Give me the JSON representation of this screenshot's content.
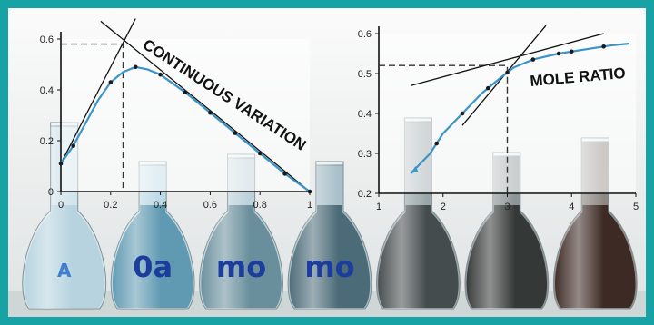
{
  "page": {
    "frame_color": "#17a3a6",
    "background": "#ececec"
  },
  "flasks": [
    {
      "label": "A",
      "liquid": "#b6d3df",
      "glass": "#d3e5ec",
      "text_color": "#3d7fd0"
    },
    {
      "label": "0a",
      "liquid": "#5f9ab2",
      "glass": "#bcd9e6",
      "text_color": "#1d3d9c"
    },
    {
      "label": "mo",
      "liquid": "#6a8f9c",
      "glass": "#bcd1d9",
      "text_color": "#1d3d9c"
    },
    {
      "label": "mo",
      "liquid": "#4c6b78",
      "glass": "#a9c0ca",
      "text_color": "#1d3d9c"
    },
    {
      "label": "",
      "liquid": "#454c4d",
      "glass": "#99a6a8",
      "text_color": "#333333"
    },
    {
      "label": "",
      "liquid": "#343837",
      "glass": "#8c9596",
      "text_color": "#333333"
    },
    {
      "label": "",
      "liquid": "#3d2a24",
      "glass": "#8e8884",
      "text_color": "#333333"
    }
  ],
  "chart_data": [
    {
      "type": "line",
      "title": "CONTINUOUS VARIATION",
      "xlabel": "",
      "ylabel": "",
      "xlim": [
        0,
        1
      ],
      "ylim": [
        0,
        0.6
      ],
      "x_ticks": [
        "0",
        "0.2",
        "0.4",
        "0.6",
        "0.8",
        "1"
      ],
      "y_ticks": [
        "0",
        "0.2",
        "0.4",
        "0.6"
      ],
      "series": [
        {
          "color": "#3a94c8",
          "x": [
            0,
            0.05,
            0.1,
            0.15,
            0.2,
            0.25,
            0.3,
            0.35,
            0.4,
            0.5,
            0.6,
            0.7,
            0.8,
            0.9,
            1.0
          ],
          "y": [
            0.11,
            0.18,
            0.27,
            0.36,
            0.43,
            0.47,
            0.49,
            0.48,
            0.46,
            0.39,
            0.31,
            0.23,
            0.15,
            0.07,
            0.0
          ]
        }
      ],
      "markers_x": [
        0,
        0.05,
        0.2,
        0.3,
        0.4,
        0.5,
        0.6,
        0.7,
        0.8,
        0.9,
        1.0
      ],
      "tangents": [
        {
          "x": [
            0,
            0.3
          ],
          "y": [
            0.11,
            0.68
          ]
        },
        {
          "x": [
            0.16,
            1.0
          ],
          "y": [
            0.67,
            0.0
          ]
        }
      ],
      "intersection": {
        "x": 0.25,
        "y": 0.58
      }
    },
    {
      "type": "line",
      "title": "MOLE RATIO",
      "xlabel": "",
      "ylabel": "",
      "xlim": [
        1,
        5
      ],
      "ylim": [
        0.2,
        0.6
      ],
      "x_ticks": [
        "1",
        "2",
        "3",
        "4",
        "5"
      ],
      "y_ticks": [
        "0.2",
        "0.3",
        "0.4",
        "0.5",
        "0.6"
      ],
      "series": [
        {
          "color": "#3a94c8",
          "x": [
            1.5,
            1.8,
            2.0,
            2.3,
            2.6,
            2.9,
            3.1,
            3.4,
            3.8,
            4.2,
            4.6,
            4.9
          ],
          "y": [
            0.25,
            0.3,
            0.35,
            0.4,
            0.45,
            0.49,
            0.515,
            0.535,
            0.55,
            0.56,
            0.57,
            0.575
          ]
        }
      ],
      "markers_x": [
        1.9,
        2.3,
        2.7,
        3.0,
        3.4,
        3.8,
        4.0,
        4.5
      ],
      "tangents": [
        {
          "x": [
            1.5,
            4.5
          ],
          "y": [
            0.47,
            0.6
          ]
        },
        {
          "x": [
            2.3,
            3.6
          ],
          "y": [
            0.37,
            0.62
          ]
        }
      ],
      "intersection": {
        "x": 3.0,
        "y": 0.52
      }
    }
  ]
}
